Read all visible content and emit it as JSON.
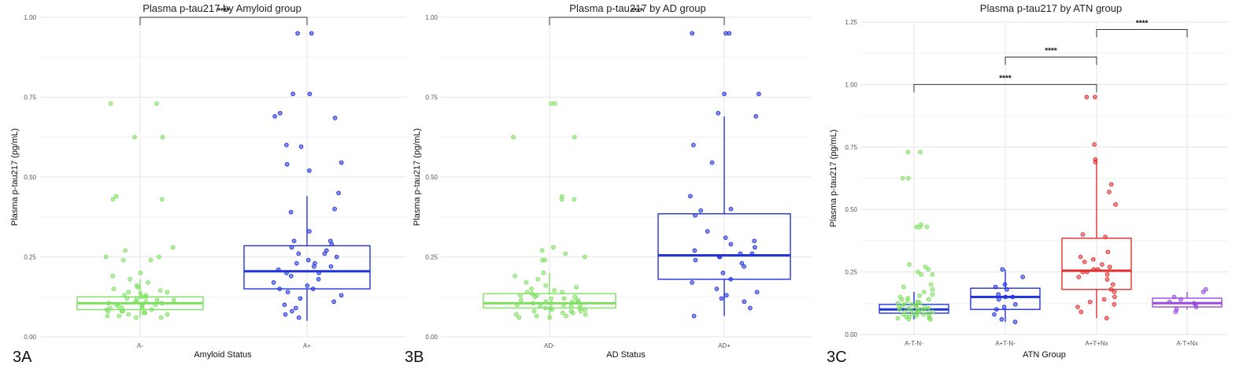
{
  "chart_data": [
    {
      "type": "box",
      "panel_label": "3A",
      "title": "Plasma p-tau217 by Amyloid group",
      "xlabel": "Amyloid Status",
      "ylabel": "Plasma p-tau217 (pg/mL)",
      "ylim": [
        0,
        1.0
      ],
      "yticks": [
        "0.00",
        "0.25",
        "0.50",
        "0.75",
        "1.00"
      ],
      "grid": true,
      "categories": [
        "A-",
        "A+"
      ],
      "colors": [
        "#7ee060",
        "#2233dd"
      ],
      "boxes": [
        {
          "category": "A-",
          "min": 0.06,
          "q1": 0.085,
          "median": 0.105,
          "q3": 0.125,
          "max": 0.18
        },
        {
          "category": "A+",
          "min": 0.05,
          "q1": 0.15,
          "median": 0.205,
          "q3": 0.285,
          "max": 0.44
        }
      ],
      "points": [
        [
          0.73,
          0.73,
          0.625,
          0.625,
          0.44,
          0.43,
          0.43,
          0.28,
          0.27,
          0.25,
          0.25,
          0.24,
          0.24,
          0.2,
          0.19,
          0.18,
          0.17,
          0.16,
          0.155,
          0.15,
          0.145,
          0.14,
          0.14,
          0.135,
          0.13,
          0.13,
          0.125,
          0.125,
          0.12,
          0.12,
          0.115,
          0.115,
          0.11,
          0.11,
          0.11,
          0.105,
          0.105,
          0.1,
          0.1,
          0.1,
          0.095,
          0.095,
          0.09,
          0.09,
          0.09,
          0.085,
          0.085,
          0.08,
          0.08,
          0.08,
          0.075,
          0.075,
          0.07,
          0.07,
          0.065,
          0.065,
          0.06,
          0.06
        ],
        [
          0.95,
          0.95,
          0.76,
          0.76,
          0.7,
          0.69,
          0.685,
          0.6,
          0.595,
          0.545,
          0.54,
          0.52,
          0.45,
          0.4,
          0.39,
          0.33,
          0.3,
          0.3,
          0.29,
          0.28,
          0.27,
          0.26,
          0.26,
          0.25,
          0.24,
          0.23,
          0.23,
          0.22,
          0.22,
          0.21,
          0.2,
          0.2,
          0.19,
          0.18,
          0.17,
          0.16,
          0.15,
          0.15,
          0.14,
          0.13,
          0.12,
          0.11,
          0.1,
          0.09,
          0.08,
          0.07,
          0.06
        ]
      ],
      "comparisons": [
        {
          "from": "A-",
          "to": "A+",
          "y": 1.0,
          "label": "****"
        }
      ]
    },
    {
      "type": "box",
      "panel_label": "3B",
      "title": "Plasma p-tau217 by AD group",
      "xlabel": "AD Status",
      "ylabel": "Plasma p-tau217 (pg/mL)",
      "ylim": [
        0,
        1.0
      ],
      "yticks": [
        "0.00",
        "0.25",
        "0.50",
        "0.75",
        "1.00"
      ],
      "grid": true,
      "categories": [
        "AD-",
        "AD+"
      ],
      "colors": [
        "#7ee060",
        "#2233dd"
      ],
      "boxes": [
        {
          "category": "AD-",
          "min": 0.06,
          "q1": 0.09,
          "median": 0.105,
          "q3": 0.135,
          "max": 0.2
        },
        {
          "category": "AD+",
          "min": 0.065,
          "q1": 0.18,
          "median": 0.255,
          "q3": 0.385,
          "max": 0.69
        }
      ],
      "points": [
        [
          0.73,
          0.73,
          0.625,
          0.625,
          0.44,
          0.43,
          0.43,
          0.28,
          0.27,
          0.26,
          0.25,
          0.24,
          0.24,
          0.2,
          0.19,
          0.18,
          0.17,
          0.16,
          0.155,
          0.15,
          0.145,
          0.14,
          0.14,
          0.135,
          0.13,
          0.13,
          0.125,
          0.125,
          0.12,
          0.12,
          0.115,
          0.115,
          0.11,
          0.11,
          0.11,
          0.105,
          0.105,
          0.1,
          0.1,
          0.1,
          0.095,
          0.095,
          0.09,
          0.09,
          0.09,
          0.085,
          0.085,
          0.08,
          0.08,
          0.08,
          0.075,
          0.075,
          0.07,
          0.07,
          0.065,
          0.065,
          0.06,
          0.06
        ],
        [
          0.95,
          0.95,
          0.95,
          0.76,
          0.76,
          0.7,
          0.69,
          0.6,
          0.545,
          0.44,
          0.4,
          0.395,
          0.38,
          0.33,
          0.31,
          0.3,
          0.29,
          0.28,
          0.27,
          0.26,
          0.26,
          0.25,
          0.25,
          0.24,
          0.23,
          0.22,
          0.2,
          0.18,
          0.17,
          0.15,
          0.14,
          0.13,
          0.12,
          0.11,
          0.09,
          0.065
        ]
      ],
      "comparisons": [
        {
          "from": "AD-",
          "to": "AD+",
          "y": 1.0,
          "label": "****"
        }
      ]
    },
    {
      "type": "box",
      "panel_label": "3C",
      "title": "Plasma p-tau217 by ATN group",
      "xlabel": "ATN Group",
      "ylabel": "Plasma p-tau217 (pg/mL)",
      "ylim": [
        0,
        1.25
      ],
      "yticks": [
        "0.00",
        "0.25",
        "0.50",
        "0.75",
        "1.00",
        "1.25"
      ],
      "grid": true,
      "categories": [
        "A-T-N-",
        "A+T-N-",
        "A+T+Nx",
        "A-T+Nx"
      ],
      "colors": [
        "#2233dd",
        "#2233dd",
        "#e03030",
        "#9a4ae0"
      ],
      "pointColors": [
        "#7ee060",
        "#2233dd",
        "#e03030",
        "#9a4ae0"
      ],
      "boxes": [
        {
          "category": "A-T-N-",
          "min": 0.06,
          "q1": 0.085,
          "median": 0.1,
          "q3": 0.12,
          "max": 0.17
        },
        {
          "category": "A+T-N-",
          "min": 0.05,
          "q1": 0.1,
          "median": 0.15,
          "q3": 0.185,
          "max": 0.26
        },
        {
          "category": "A+T+Nx",
          "min": 0.065,
          "q1": 0.18,
          "median": 0.255,
          "q3": 0.385,
          "max": 0.69
        },
        {
          "category": "A-T+Nx",
          "min": 0.1,
          "q1": 0.11,
          "median": 0.125,
          "q3": 0.145,
          "max": 0.17
        }
      ],
      "points": [
        [
          0.73,
          0.73,
          0.625,
          0.625,
          0.44,
          0.43,
          0.43,
          0.43,
          0.28,
          0.27,
          0.26,
          0.25,
          0.24,
          0.24,
          0.2,
          0.19,
          0.18,
          0.17,
          0.16,
          0.155,
          0.15,
          0.145,
          0.14,
          0.14,
          0.135,
          0.13,
          0.13,
          0.125,
          0.125,
          0.12,
          0.12,
          0.115,
          0.115,
          0.11,
          0.11,
          0.11,
          0.105,
          0.105,
          0.1,
          0.1,
          0.1,
          0.095,
          0.095,
          0.09,
          0.09,
          0.09,
          0.085,
          0.085,
          0.08,
          0.08,
          0.08,
          0.075,
          0.075,
          0.07,
          0.07,
          0.065,
          0.065,
          0.06,
          0.06
        ],
        [
          0.26,
          0.23,
          0.2,
          0.19,
          0.18,
          0.16,
          0.15,
          0.15,
          0.14,
          0.12,
          0.11,
          0.1,
          0.08,
          0.06,
          0.05
        ],
        [
          0.95,
          0.95,
          0.76,
          0.7,
          0.69,
          0.6,
          0.57,
          0.52,
          0.4,
          0.39,
          0.33,
          0.31,
          0.3,
          0.29,
          0.28,
          0.27,
          0.26,
          0.26,
          0.25,
          0.25,
          0.24,
          0.23,
          0.22,
          0.2,
          0.18,
          0.17,
          0.15,
          0.14,
          0.13,
          0.12,
          0.11,
          0.09,
          0.065
        ],
        [
          0.18,
          0.17,
          0.15,
          0.14,
          0.13,
          0.125,
          0.12,
          0.11,
          0.1,
          0.09
        ]
      ],
      "comparisons": [
        {
          "from": "A-T-N-",
          "to": "A+T+Nx",
          "y": 1.0,
          "label": "****"
        },
        {
          "from": "A+T-N-",
          "to": "A+T+Nx",
          "y": 1.11,
          "label": "****"
        },
        {
          "from": "A+T+Nx",
          "to": "A-T+Nx",
          "y": 1.22,
          "label": "****"
        }
      ]
    }
  ]
}
